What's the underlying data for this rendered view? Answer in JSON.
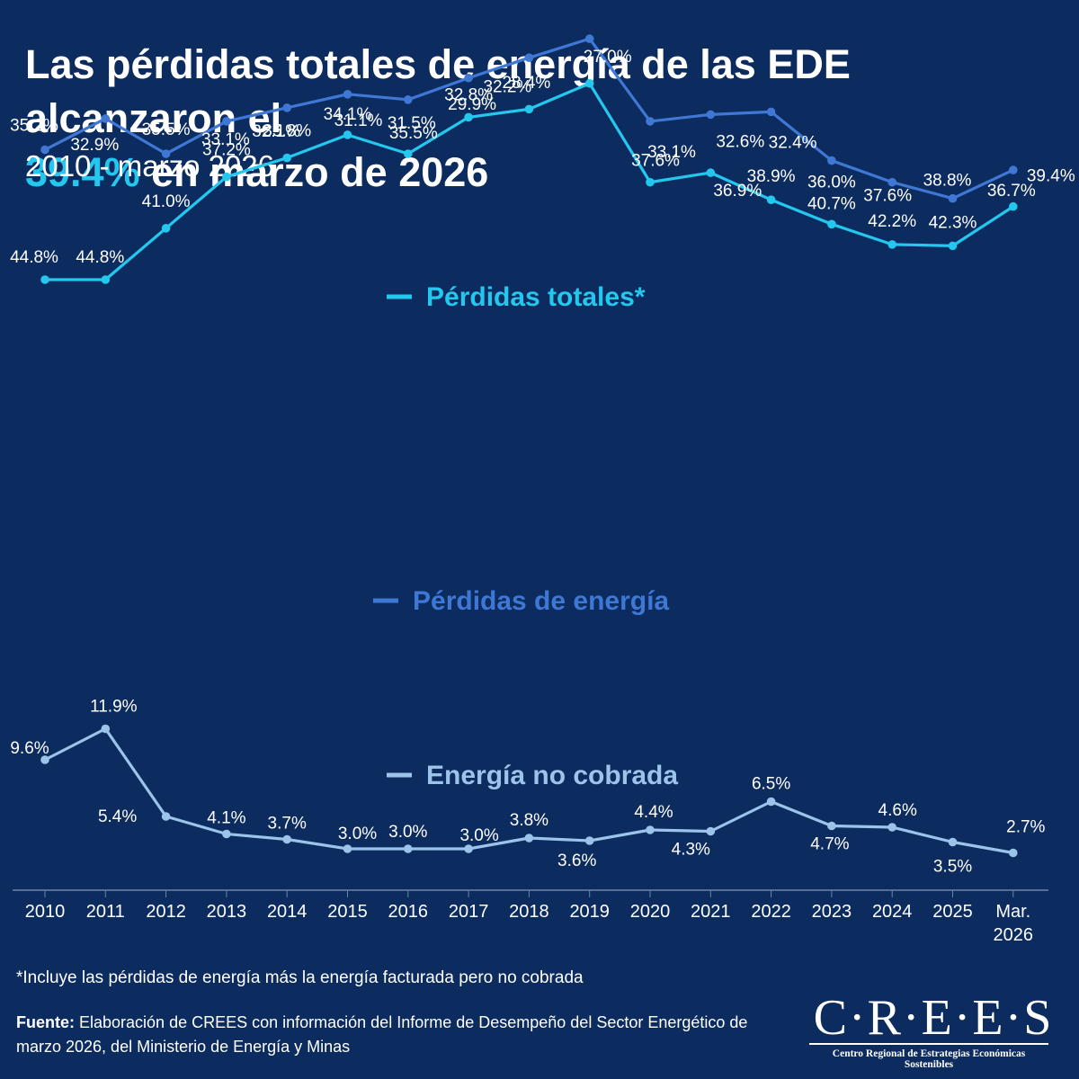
{
  "header": {
    "title_part1": "Las pérdidas totales de energía de las EDE alcanzaron el",
    "title_highlight": "39.4%",
    "title_part2": " en marzo de 2026",
    "subtitle": "2010 - marzo 2026"
  },
  "footer": {
    "footnote": "*Incluye las pérdidas de energía más la energía facturada pero no cobrada",
    "source_label": "Fuente:",
    "source_text": " Elaboración de CREES con información del Informe de Desempeño del Sector Energético de marzo 2026, del Ministerio de Energía y Minas"
  },
  "logo": {
    "wordmark": "C·R·E·E·S",
    "tagline": "Centro Regional de Estrategias Económicas Sostenibles"
  },
  "colors": {
    "background": "#0c2b5e",
    "total": "#24c8ef",
    "energy": "#3f78d4",
    "uncollected": "#9cc3ea",
    "highlight": "#24c8ef"
  },
  "chart_data": {
    "type": "line",
    "categories": [
      "2010",
      "2011",
      "2012",
      "2013",
      "2014",
      "2015",
      "2016",
      "2017",
      "2018",
      "2019",
      "2020",
      "2021",
      "2022",
      "2023",
      "2024",
      "2025",
      "Mar. 2026"
    ],
    "legend_placement": "inline-labels",
    "grid": false,
    "series": [
      {
        "name": "Pérdidas totales*",
        "key": "total",
        "values": [
          44.8,
          44.8,
          41.0,
          37.2,
          35.8,
          34.1,
          35.5,
          32.8,
          32.2,
          30.3,
          37.6,
          36.9,
          38.9,
          40.7,
          42.2,
          42.3,
          39.4
        ],
        "labels": [
          "44.8%",
          "44.8%",
          "41.0%",
          "37.2%",
          "35.8%",
          "34.1%",
          "35.5%",
          "32.8%",
          "32.2%",
          "",
          "37.6%",
          "36.9%",
          "38.9%",
          "40.7%",
          "42.2%",
          "42.3%",
          "39.4%"
        ]
      },
      {
        "name": "Pérdidas de energía",
        "key": "energy",
        "values": [
          35.2,
          32.9,
          35.5,
          33.1,
          32.1,
          31.1,
          31.5,
          29.9,
          28.4,
          27.0,
          33.1,
          32.6,
          32.4,
          36.0,
          37.6,
          38.8,
          36.7
        ],
        "labels": [
          "35.2%",
          "32.9%",
          "35.5%",
          "33.1%",
          "32.1%",
          "31.1%",
          "31.5%",
          "29.9%",
          "28.4%",
          "27.0%",
          "33.1%",
          "32.6%",
          "32.4%",
          "36.0%",
          "37.6%",
          "38.8%",
          "36.7%"
        ]
      },
      {
        "name": "Energía no cobrada",
        "key": "uncollected",
        "values": [
          9.6,
          11.9,
          5.4,
          4.1,
          3.7,
          3.0,
          3.0,
          3.0,
          3.8,
          3.6,
          4.4,
          4.3,
          6.5,
          4.7,
          4.6,
          3.5,
          2.7
        ],
        "labels": [
          "9.6%",
          "11.9%",
          "5.4%",
          "4.1%",
          "3.7%",
          "3.0%",
          "3.0%",
          "3.0%",
          "3.8%",
          "3.6%",
          "4.4%",
          "4.3%",
          "6.5%",
          "4.7%",
          "4.6%",
          "3.5%",
          "2.7%"
        ]
      }
    ]
  }
}
